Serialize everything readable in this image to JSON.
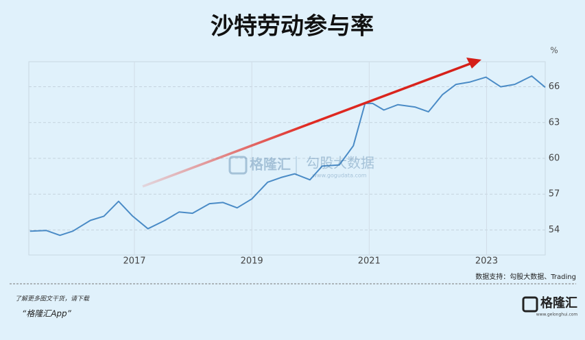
{
  "chart_data": {
    "type": "line",
    "title": "沙特劳动参与率",
    "y_unit": "%",
    "x": [
      2015.22,
      2015.5,
      2015.73,
      2015.95,
      2016.25,
      2016.48,
      2016.73,
      2016.97,
      2017.23,
      2017.52,
      2017.76,
      2017.99,
      2018.28,
      2018.51,
      2018.75,
      2019.0,
      2019.27,
      2019.5,
      2019.73,
      2019.99,
      2020.2,
      2020.49,
      2020.73,
      2020.93,
      2021.06,
      2021.25,
      2021.49,
      2021.78,
      2022.01,
      2022.25,
      2022.48,
      2022.72,
      2022.99,
      2023.24,
      2023.48,
      2023.77,
      2024.0
    ],
    "series": [
      {
        "color": "#4a8bc6",
        "values": [
          53.9,
          53.95,
          53.55,
          53.9,
          54.8,
          55.15,
          56.4,
          55.15,
          54.1,
          54.8,
          55.5,
          55.4,
          56.2,
          56.3,
          55.85,
          56.6,
          58.0,
          58.4,
          58.7,
          58.2,
          59.35,
          59.45,
          61.05,
          64.6,
          64.6,
          64.05,
          64.5,
          64.3,
          63.9,
          65.35,
          66.2,
          66.4,
          66.8,
          66.0,
          66.2,
          66.9,
          65.95
        ]
      }
    ],
    "xlim": [
      2015.2,
      2024.0
    ],
    "xticks": [
      2017,
      2019,
      2021,
      2023
    ],
    "ylim": [
      51.9,
      68.1
    ],
    "yticks": [
      54,
      57,
      60,
      63,
      66
    ],
    "grid": true,
    "watermark": {
      "brand": "格隆汇",
      "name": "勾股大数据",
      "url": "www.gogudata.com"
    },
    "source": "数据支持：勾股大数据、Trading",
    "footer": {
      "prompt": "了解更多图文干货，请下载",
      "app": "“格隆汇App”",
      "logo": "格隆汇",
      "logo_url": "www.gelonghui.com"
    }
  }
}
